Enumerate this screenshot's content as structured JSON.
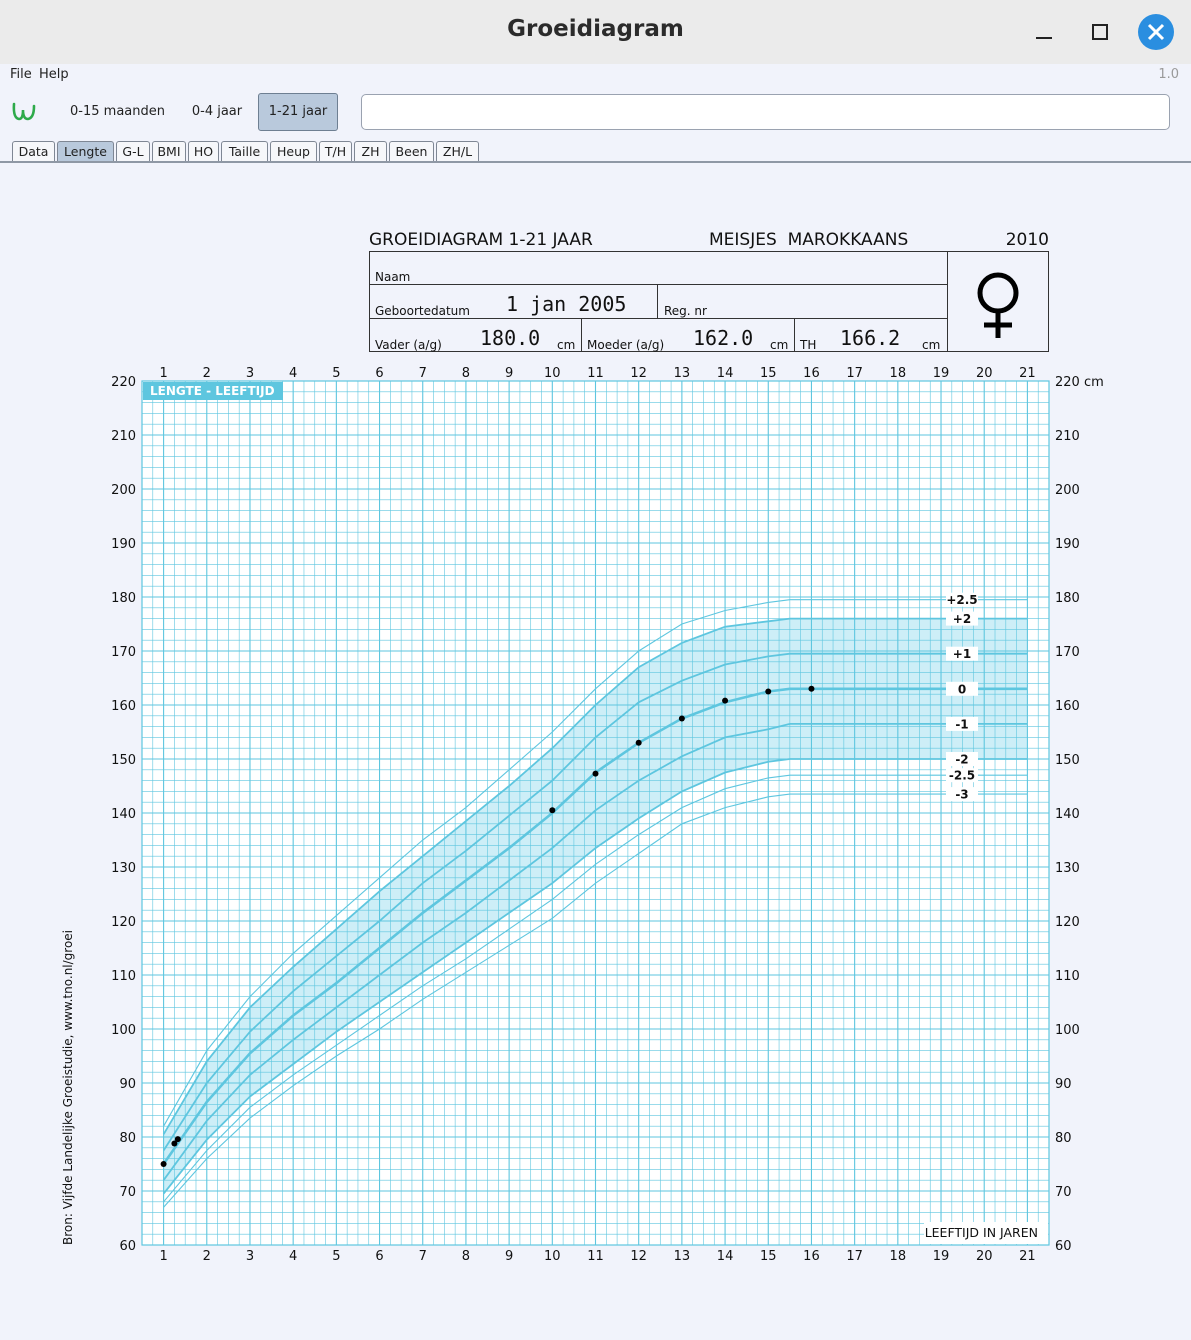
{
  "window": {
    "title": "Groeidiagram",
    "minimize_icon": "minimize-icon",
    "maximize_icon": "maximize-icon",
    "close_icon": "close-icon"
  },
  "menu": {
    "items": [
      "File",
      "Help"
    ],
    "version": "1.0"
  },
  "toolbar": {
    "buttons": [
      {
        "label": "0-15 maanden"
      },
      {
        "label": "0-4 jaar"
      },
      {
        "label": "1-21 jaar",
        "active": true
      }
    ],
    "search_value": ""
  },
  "tabs": [
    "Data",
    "Lengte",
    "G-L",
    "BMI",
    "HO",
    "Taille",
    "Heup",
    "T/H",
    "ZH",
    "Been",
    "ZH/L"
  ],
  "active_tab": "Lengte",
  "header": {
    "title": "GROEIDIAGRAM 1-21 JAAR",
    "group": "MEISJES  MAROKKAANS",
    "year": "2010",
    "naam_label": "Naam",
    "naam_value": "",
    "geboorte_label": "Geboortedatum",
    "geboorte_value": "1 jan 2005",
    "regnr_label": "Reg. nr",
    "regnr_value": "",
    "vader_label": "Vader (a/g)",
    "vader_value": "180.0",
    "moeder_label": "Moeder (a/g)",
    "moeder_value": "162.0",
    "th_label": "TH",
    "th_value": "166.2",
    "unit": "cm",
    "symbol": "female-symbol-icon"
  },
  "colors": {
    "grid": "#5ec6df",
    "band": "#cdeef7",
    "accent": "#5ec6df",
    "close": "#2a8ee0",
    "logo": "#2eaa4a"
  },
  "chart_data": {
    "type": "line",
    "title": "LENGTE - LEEFTIJD",
    "xlabel": "LEEFTIJD IN JAREN",
    "ylabel": "cm",
    "source_note": "Bron: Vijfde Landelijke Groeistudie, www.tno.nl/groei",
    "top_right_label": "220 cm",
    "xlim": [
      0.5,
      21.5
    ],
    "ylim": [
      60,
      220
    ],
    "x_ticks": [
      1,
      2,
      3,
      4,
      5,
      6,
      7,
      8,
      9,
      10,
      11,
      12,
      13,
      14,
      15,
      16,
      17,
      18,
      19,
      20,
      21
    ],
    "y_ticks": [
      60,
      70,
      80,
      90,
      100,
      110,
      120,
      130,
      140,
      150,
      160,
      170,
      180,
      190,
      200,
      210,
      220
    ],
    "grid": true,
    "shaded_band": [
      "-2",
      "+2"
    ],
    "reference_ages": [
      1,
      2,
      3,
      4,
      5,
      6,
      7,
      8,
      9,
      10,
      11,
      12,
      13,
      14,
      15,
      15.5,
      21
    ],
    "series": [
      {
        "name": "+2.5",
        "values": [
          82,
          96,
          106,
          114,
          121,
          128,
          135,
          141,
          148,
          155,
          163,
          170,
          175,
          177.5,
          179,
          179.5,
          179.5
        ]
      },
      {
        "name": "+2",
        "values": [
          80.5,
          94,
          104,
          111.5,
          118.5,
          125.5,
          132,
          138.5,
          145,
          152,
          160,
          167,
          171.5,
          174.5,
          175.5,
          176,
          176
        ]
      },
      {
        "name": "+1",
        "values": [
          77.5,
          90,
          99.5,
          107,
          113.5,
          120,
          127,
          133,
          139.5,
          146,
          154,
          160.5,
          164.5,
          167.5,
          169,
          169.5,
          169.5
        ]
      },
      {
        "name": "0",
        "values": [
          75,
          86.5,
          95.5,
          102.5,
          108.5,
          115,
          121.5,
          127.5,
          133.5,
          140,
          147.5,
          153,
          157.5,
          160.5,
          162.5,
          163,
          163
        ]
      },
      {
        "name": "-1",
        "values": [
          72,
          83,
          91.5,
          98,
          104,
          110,
          116,
          121.5,
          127.5,
          133.5,
          140.5,
          146,
          150.5,
          154,
          155.5,
          156.5,
          156.5
        ]
      },
      {
        "name": "-2",
        "values": [
          69.5,
          79.5,
          87.5,
          93.5,
          99.5,
          105,
          110.5,
          116,
          121.5,
          127,
          133.5,
          139,
          144,
          147.5,
          149.5,
          150,
          150
        ]
      },
      {
        "name": "-2.5",
        "values": [
          68,
          77.5,
          85.5,
          91.5,
          97,
          102.5,
          108,
          113,
          118.5,
          124,
          130.5,
          136,
          141,
          144.5,
          146.5,
          147,
          147
        ]
      },
      {
        "name": "-3",
        "values": [
          67,
          76,
          83.5,
          89.5,
          95,
          100,
          105.5,
          110.5,
          115.5,
          120.5,
          127,
          132.5,
          138,
          141,
          143,
          143.5,
          143.5
        ]
      }
    ],
    "line_labels": [
      {
        "name": "+2.5",
        "value": 179.5
      },
      {
        "name": "+2",
        "value": 176
      },
      {
        "name": "+1",
        "value": 169.5
      },
      {
        "name": "0",
        "value": 163
      },
      {
        "name": "-1",
        "value": 156.5
      },
      {
        "name": "-2",
        "value": 150
      },
      {
        "name": "-2.5",
        "value": 147
      },
      {
        "name": "-3",
        "value": 143.5
      }
    ],
    "measurements": [
      {
        "x": 1.0,
        "y": 75.0
      },
      {
        "x": 1.25,
        "y": 78.8
      },
      {
        "x": 1.33,
        "y": 79.6
      },
      {
        "x": 10.0,
        "y": 140.5
      },
      {
        "x": 11.0,
        "y": 147.3
      },
      {
        "x": 12.0,
        "y": 153.0
      },
      {
        "x": 13.0,
        "y": 157.5
      },
      {
        "x": 14.0,
        "y": 160.8
      },
      {
        "x": 15.0,
        "y": 162.5
      },
      {
        "x": 16.0,
        "y": 163.0
      }
    ]
  }
}
